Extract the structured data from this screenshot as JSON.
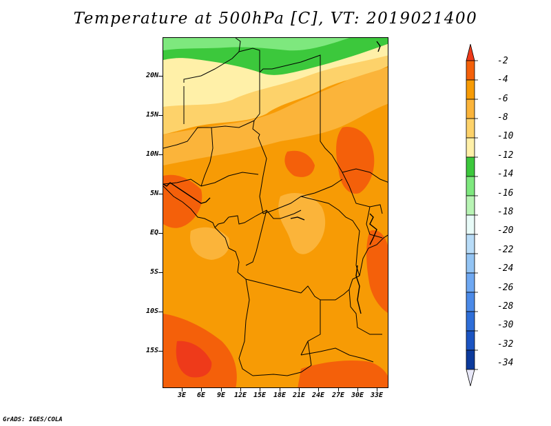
{
  "title": "Temperature at 500hPa [C], VT: 2019021400",
  "credit": "GrADS: IGES/COLA",
  "map": {
    "lat_labels": [
      "20N",
      "15N",
      "10N",
      "5N",
      "EQ",
      "5S",
      "10S",
      "15S"
    ],
    "lon_labels": [
      "3E",
      "6E",
      "9E",
      "12E",
      "15E",
      "18E",
      "21E",
      "24E",
      "27E",
      "30E",
      "33E"
    ]
  },
  "colorbar": {
    "labels": [
      "-2",
      "-4",
      "-6",
      "-8",
      "-10",
      "-12",
      "-14",
      "-16",
      "-18",
      "-20",
      "-22",
      "-24",
      "-26",
      "-28",
      "-30",
      "-32",
      "-34"
    ],
    "colors": [
      "#ee3a1a",
      "#f4600a",
      "#f79b05",
      "#fbb43a",
      "#fdd26a",
      "#fff0a8",
      "#3cc83c",
      "#7ee87e",
      "#b8f4b4",
      "#e8fbf8",
      "#b8dcf8",
      "#93c4f4",
      "#6ea8f2",
      "#4b8ae8",
      "#2e6ed8",
      "#1b54c2",
      "#0c3a9c",
      "#101070"
    ]
  },
  "legend_colors": {
    "c_m2_above": "#ee3a1a",
    "c_m4_m2": "#f4600a",
    "c_m6_m4": "#f79b05",
    "c_m8_m6": "#fbb43a",
    "c_m10_m8": "#fdd26a",
    "c_m12_m10": "#fff0a8",
    "c_m14_m12": "#3cc83c",
    "c_m16_m14": "#7ee87e"
  }
}
